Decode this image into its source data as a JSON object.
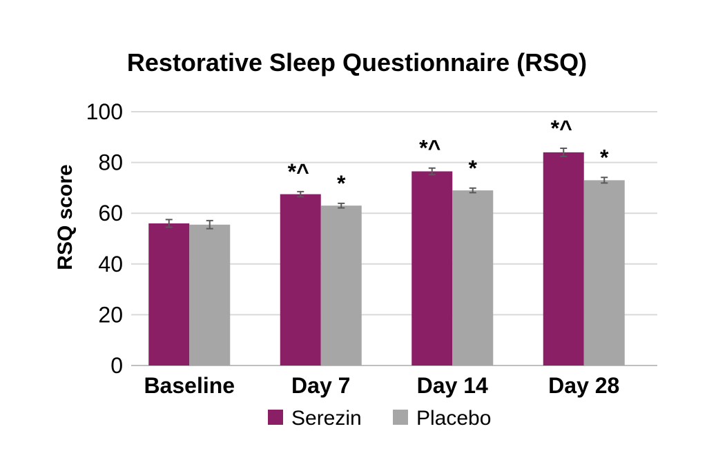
{
  "chart_data": {
    "type": "bar",
    "title": "Restorative Sleep Questionnaire (RSQ)",
    "xlabel": "",
    "ylabel": "RSQ score",
    "ylim": [
      0,
      100
    ],
    "yticks": [
      "0",
      "20",
      "40",
      "60",
      "80",
      "100"
    ],
    "ytick_values": [
      0,
      20,
      40,
      60,
      80,
      100
    ],
    "categories": [
      "Baseline",
      "Day 7",
      "Day 14",
      "Day 28"
    ],
    "series": [
      {
        "name": "Serezin",
        "color": "#8b1f66",
        "values": [
          56,
          67.5,
          76.5,
          84
        ],
        "errors": [
          1.5,
          1.0,
          1.3,
          1.6
        ],
        "significance": [
          "",
          "*^",
          "*^",
          "*^"
        ]
      },
      {
        "name": "Placebo",
        "color": "#a6a6a6",
        "values": [
          55.5,
          63,
          69,
          73
        ],
        "errors": [
          1.6,
          0.9,
          0.9,
          1.1
        ],
        "significance": [
          "",
          "*",
          "*",
          "*"
        ]
      }
    ],
    "grid": true,
    "legend_position": "bottom"
  }
}
